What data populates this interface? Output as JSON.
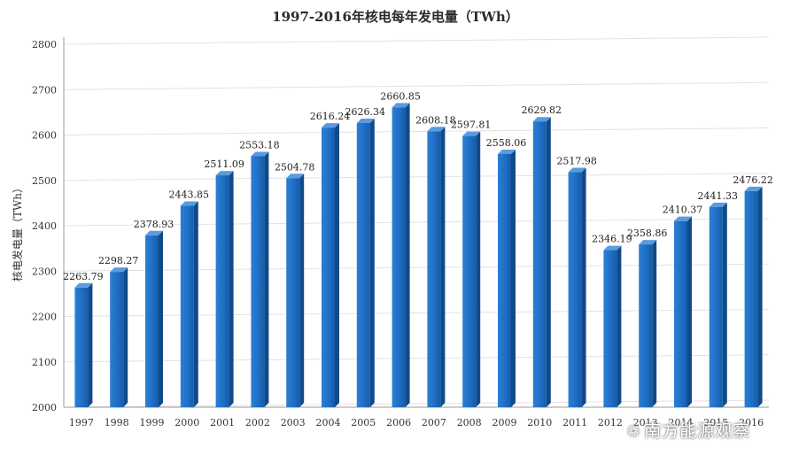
{
  "chart_data": {
    "type": "bar",
    "title": "1997-2016年核电每年发电量（TWh）",
    "xlabel": "",
    "ylabel": "核电发电量（TWh）",
    "ylim": [
      2000,
      2800
    ],
    "yticks": [
      2000,
      2100,
      2200,
      2300,
      2400,
      2500,
      2600,
      2700,
      2800
    ],
    "grid": true,
    "categories": [
      "1997",
      "1998",
      "1999",
      "2000",
      "2001",
      "2002",
      "2003",
      "2004",
      "2005",
      "2006",
      "2007",
      "2008",
      "2009",
      "2010",
      "2011",
      "2012",
      "2013",
      "2014",
      "2015",
      "2016"
    ],
    "values": [
      2263.79,
      2298.27,
      2378.93,
      2443.85,
      2511.09,
      2553.18,
      2504.78,
      2616.24,
      2626.34,
      2660.85,
      2608.18,
      2597.81,
      2558.06,
      2629.82,
      2517.98,
      2346.19,
      2358.86,
      2410.37,
      2441.33,
      2476.22
    ],
    "value_labels": [
      "2263.79",
      "2298.27",
      "2378.93",
      "2443.85",
      "2511.09",
      "2553.18",
      "2504.78",
      "2616.24",
      "2626.34",
      "2660.85",
      "2608.18",
      "2597.81",
      "2558.06",
      "2629.82",
      "2517.98",
      "2346.19",
      "2358.86",
      "2410.37",
      "2441.33",
      "2476.22"
    ],
    "bar_color": "#1f6fc4"
  },
  "watermark": {
    "text": "南方能源观察",
    "icon": "wechat-icon"
  }
}
